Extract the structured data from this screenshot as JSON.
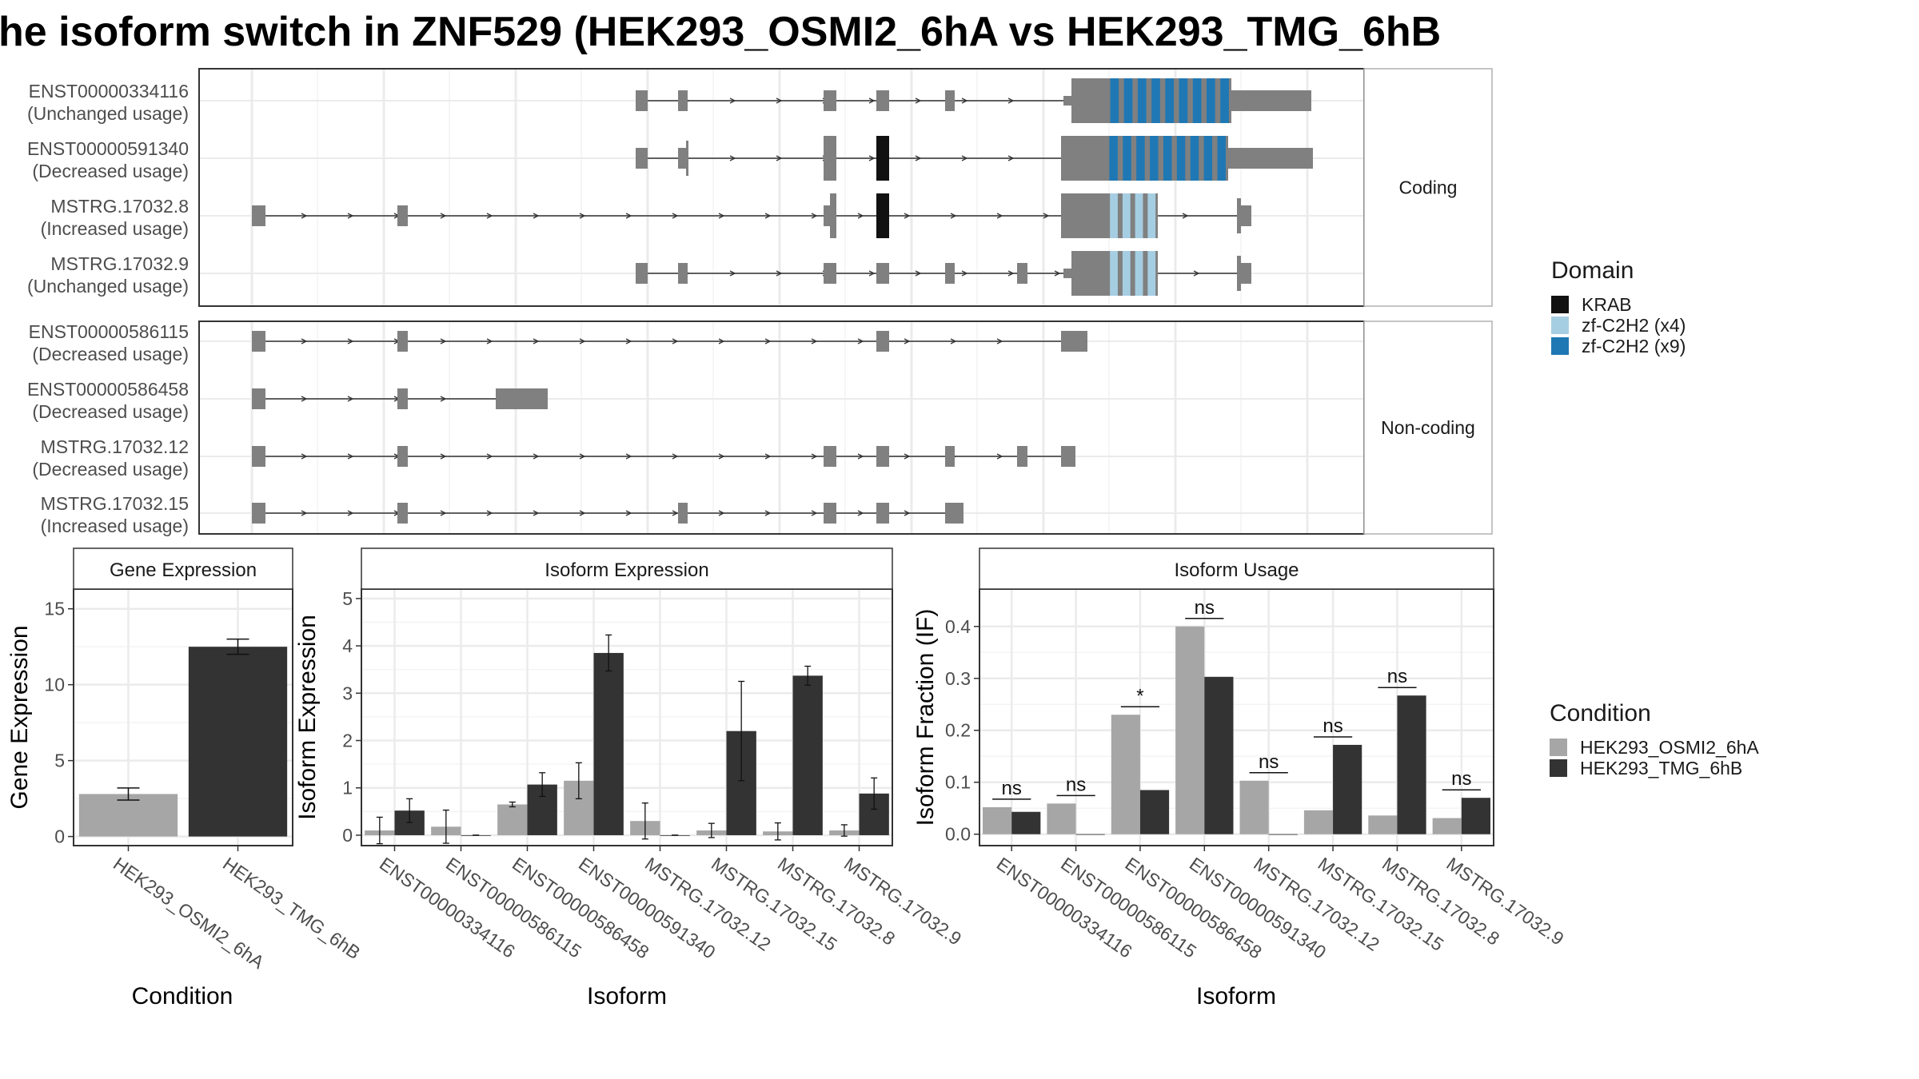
{
  "title": "he isoform switch in ZNF529 (HEK293_OSMI2_6hA vs HEK293_TMG_6hB",
  "colors": {
    "exon": "#808080",
    "krab": "#111111",
    "zf_x4": "#a6cee3",
    "zf_x9": "#1f78b4",
    "cond_a": "#a6a6a6",
    "cond_b": "#333333"
  },
  "structure": {
    "facets": [
      "Coding",
      "Non-coding"
    ],
    "transcripts": [
      {
        "id": "ENST00000334116",
        "usage": "(Unchanged usage)",
        "facet": "Coding"
      },
      {
        "id": "ENST00000591340",
        "usage": "(Decreased usage)",
        "facet": "Coding"
      },
      {
        "id": "MSTRG.17032.8",
        "usage": "(Increased usage)",
        "facet": "Coding"
      },
      {
        "id": "MSTRG.17032.9",
        "usage": "(Unchanged usage)",
        "facet": "Coding"
      },
      {
        "id": "ENST00000586115",
        "usage": "(Decreased usage)",
        "facet": "Non-coding"
      },
      {
        "id": "ENST00000586458",
        "usage": "(Decreased usage)",
        "facet": "Non-coding"
      },
      {
        "id": "MSTRG.17032.12",
        "usage": "(Decreased usage)",
        "facet": "Non-coding"
      },
      {
        "id": "MSTRG.17032.15",
        "usage": "(Increased usage)",
        "facet": "Non-coding"
      }
    ]
  },
  "legend_domain": {
    "title": "Domain",
    "items": [
      {
        "label": "KRAB",
        "color": "#111111"
      },
      {
        "label": "zf-C2H2 (x4)",
        "color": "#a6cee3"
      },
      {
        "label": "zf-C2H2 (x9)",
        "color": "#1f78b4"
      }
    ]
  },
  "legend_condition": {
    "title": "Condition",
    "items": [
      {
        "label": "HEK293_OSMI2_6hA",
        "color": "#a6a6a6"
      },
      {
        "label": "HEK293_TMG_6hB",
        "color": "#333333"
      }
    ]
  },
  "chart_data": [
    {
      "type": "bar",
      "title": "Gene Expression",
      "xlabel": "Condition",
      "ylabel": "Gene Expression",
      "categories": [
        "HEK293_OSMI2_6hA",
        "HEK293_TMG_6hB"
      ],
      "values": [
        2.8,
        12.5
      ],
      "errors": [
        0.4,
        0.5
      ],
      "yticks": [
        0,
        5,
        10,
        15
      ],
      "ylim": [
        -0.6,
        16.3
      ]
    },
    {
      "type": "bar",
      "title": "Isoform Expression",
      "xlabel": "Isoform",
      "ylabel": "Isoform Expression",
      "categories": [
        "ENST00000334116",
        "ENST00000586115",
        "ENST00000586458",
        "ENST00000591340",
        "MSTRG.17032.12",
        "MSTRG.17032.15",
        "MSTRG.17032.8",
        "MSTRG.17032.9"
      ],
      "series": [
        {
          "name": "HEK293_OSMI2_6hA",
          "values": [
            0.1,
            0.18,
            0.65,
            1.15,
            0.3,
            0.1,
            0.08,
            0.1
          ],
          "errors": [
            0.28,
            0.35,
            0.05,
            0.38,
            0.38,
            0.15,
            0.18,
            0.12
          ]
        },
        {
          "name": "HEK293_TMG_6hB",
          "values": [
            0.52,
            0.0,
            1.07,
            3.85,
            0.0,
            2.2,
            3.37,
            0.88
          ],
          "errors": [
            0.25,
            0.0,
            0.25,
            0.38,
            0.0,
            1.05,
            0.2,
            0.33
          ]
        }
      ],
      "yticks": [
        0,
        1,
        2,
        3,
        4,
        5
      ],
      "ylim": [
        -0.22,
        5.2
      ]
    },
    {
      "type": "bar",
      "title": "Isoform Usage",
      "xlabel": "Isoform",
      "ylabel": "Isoform Fraction (IF)",
      "categories": [
        "ENST00000334116",
        "ENST00000586115",
        "ENST00000586458",
        "ENST00000591340",
        "MSTRG.17032.12",
        "MSTRG.17032.15",
        "MSTRG.17032.8",
        "MSTRG.17032.9"
      ],
      "series": [
        {
          "name": "HEK293_OSMI2_6hA",
          "values": [
            0.052,
            0.059,
            0.23,
            0.4,
            0.103,
            0.046,
            0.036,
            0.031
          ]
        },
        {
          "name": "HEK293_TMG_6hB",
          "values": [
            0.043,
            0.0,
            0.085,
            0.303,
            0.0,
            0.172,
            0.267,
            0.07
          ]
        }
      ],
      "significance": [
        "ns",
        "ns",
        "*",
        "ns",
        "ns",
        "ns",
        "ns",
        "ns"
      ],
      "yticks": [
        0.0,
        0.1,
        0.2,
        0.3,
        0.4
      ],
      "ytick_labels": [
        "0.0",
        "0.1",
        "0.2",
        "0.3",
        "0.4"
      ],
      "ylim": [
        -0.022,
        0.472
      ]
    }
  ]
}
